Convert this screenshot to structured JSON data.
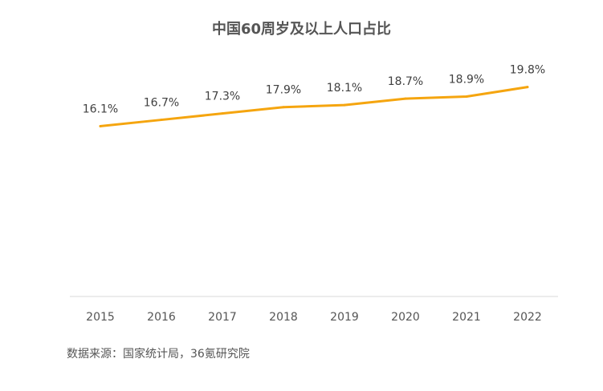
{
  "chart_data": {
    "type": "line",
    "title": "中国60周岁及以上人口占比",
    "categories": [
      "2015",
      "2016",
      "2017",
      "2018",
      "2019",
      "2020",
      "2021",
      "2022"
    ],
    "series": [
      {
        "name": "60周岁及以上人口占比",
        "values": [
          16.1,
          16.7,
          17.3,
          17.9,
          18.1,
          18.7,
          18.9,
          19.8
        ],
        "labels": [
          "16.1%",
          "16.7%",
          "17.3%",
          "17.9%",
          "18.1%",
          "18.7%",
          "18.9%",
          "19.8%"
        ],
        "color": "#F5A50F"
      }
    ],
    "xlabel": "",
    "ylabel": "",
    "ylim": [
      0,
      25
    ],
    "grid": false,
    "legend": "none"
  },
  "source": "数据来源：国家统计局，36氪研究院",
  "colors": {
    "line": "#F5A50F",
    "axis": "#d9d9d9"
  }
}
